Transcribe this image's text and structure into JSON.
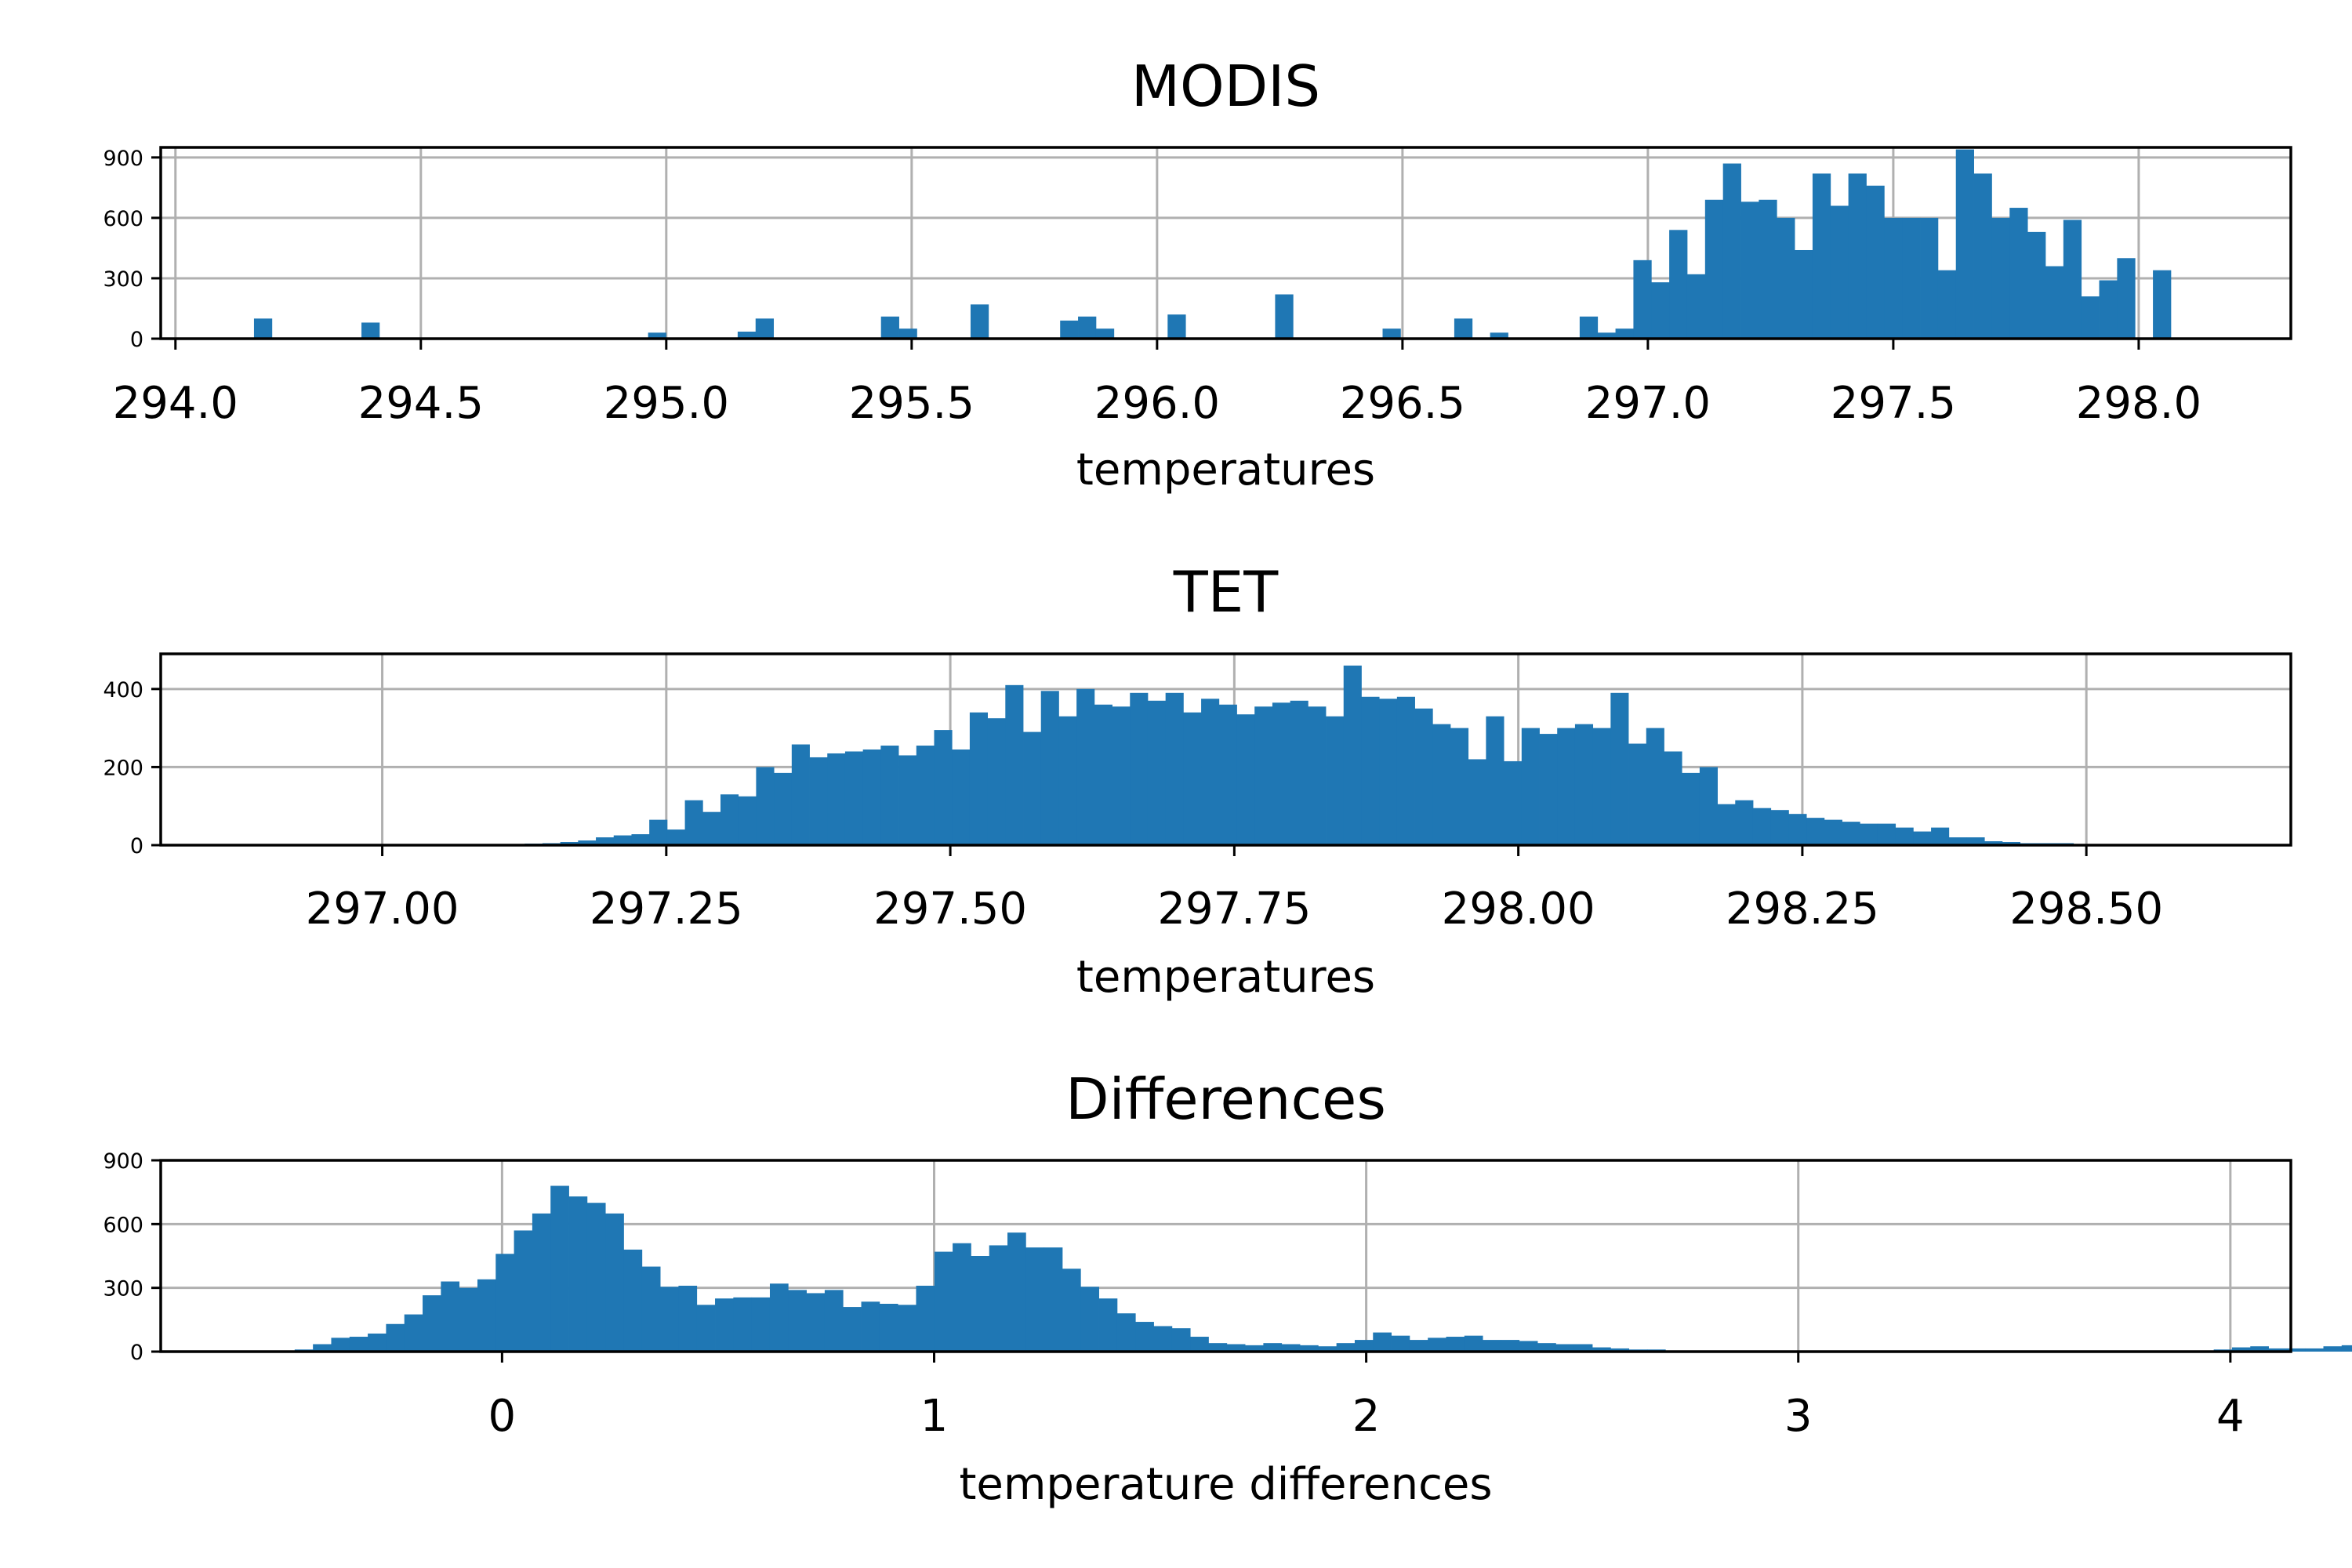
{
  "chart_data": [
    {
      "type": "bar",
      "title": "MODIS",
      "xlabel": "temperatures",
      "ylabel": "",
      "xlim": [
        293.97,
        298.31
      ],
      "ylim": [
        0,
        950
      ],
      "xticks": [
        294.0,
        294.5,
        295.0,
        295.5,
        296.0,
        296.5,
        297.0,
        297.5,
        298.0
      ],
      "xtick_labels": [
        "294.0",
        "294.5",
        "295.0",
        "295.5",
        "296.0",
        "296.5",
        "297.0",
        "297.5",
        "298.0"
      ],
      "yticks": [
        0,
        300,
        600,
        900
      ],
      "ytick_labels": [
        "0",
        "300",
        "600",
        "900"
      ],
      "grid": true,
      "color": "#1f77b4",
      "bins": {
        "start": 294.16,
        "width": 0.0365,
        "counts": [
          100,
          0,
          0,
          0,
          0,
          0,
          80,
          0,
          0,
          0,
          0,
          0,
          0,
          0,
          0,
          0,
          0,
          0,
          0,
          0,
          0,
          0,
          30,
          0,
          0,
          0,
          0,
          35,
          100,
          0,
          0,
          0,
          0,
          0,
          0,
          110,
          50,
          0,
          0,
          0,
          170,
          0,
          0,
          0,
          0,
          90,
          110,
          50,
          0,
          0,
          0,
          120,
          0,
          0,
          0,
          0,
          0,
          220,
          0,
          0,
          0,
          0,
          0,
          50,
          0,
          0,
          0,
          100,
          0,
          30,
          0,
          0,
          0,
          0,
          110,
          30,
          50,
          390,
          280,
          540,
          320,
          690,
          870,
          680,
          690,
          600,
          440,
          820,
          660,
          820,
          760,
          600,
          600,
          600,
          340,
          940,
          820,
          600,
          650,
          530,
          360,
          590,
          210,
          290,
          400,
          0,
          340
        ]
      }
    },
    {
      "type": "bar",
      "title": "TET",
      "xlabel": "temperatures",
      "ylabel": "",
      "xlim": [
        296.805,
        298.68
      ],
      "ylim": [
        0,
        490
      ],
      "xticks": [
        297.0,
        297.25,
        297.5,
        297.75,
        298.0,
        298.25,
        298.5
      ],
      "xtick_labels": [
        "297.00",
        "297.25",
        "297.50",
        "297.75",
        "298.00",
        "298.25",
        "298.50"
      ],
      "yticks": [
        0,
        200,
        400
      ],
      "ytick_labels": [
        "0",
        "200",
        "400"
      ],
      "grid": true,
      "color": "#1f77b4",
      "bins": {
        "start": 297.0,
        "width": 0.01567,
        "counts": [
          2,
          1,
          2,
          1,
          2,
          3,
          3,
          3,
          4,
          5,
          8,
          12,
          20,
          25,
          28,
          65,
          40,
          115,
          85,
          130,
          125,
          200,
          185,
          258,
          225,
          235,
          240,
          245,
          255,
          230,
          255,
          295,
          245,
          340,
          325,
          410,
          290,
          395,
          330,
          400,
          360,
          355,
          390,
          370,
          390,
          340,
          375,
          360,
          335,
          355,
          365,
          370,
          355,
          330,
          460,
          380,
          375,
          380,
          350,
          310,
          300,
          220,
          330,
          215,
          300,
          285,
          300,
          310,
          300,
          390,
          260,
          300,
          240,
          185,
          200,
          105,
          115,
          95,
          90,
          80,
          70,
          65,
          60,
          55,
          55,
          45,
          35,
          45,
          20,
          20,
          10,
          8,
          5,
          5,
          5,
          0
        ]
      }
    },
    {
      "type": "bar",
      "title": "Differences",
      "xlabel": "temperature differences",
      "ylabel": "",
      "xlim": [
        -0.79,
        4.14
      ],
      "ylim": [
        0,
        900
      ],
      "xticks": [
        0,
        1,
        2,
        3,
        4
      ],
      "xtick_labels": [
        "0",
        "1",
        "2",
        "3",
        "4"
      ],
      "yticks": [
        0,
        300,
        600,
        900
      ],
      "ytick_labels": [
        "0",
        "300",
        "600",
        "900"
      ],
      "grid": true,
      "color": "#1f77b4",
      "bins": {
        "start": -0.48,
        "width": 0.0423,
        "counts": [
          10,
          35,
          65,
          70,
          85,
          130,
          175,
          265,
          330,
          300,
          340,
          460,
          570,
          650,
          780,
          730,
          700,
          650,
          480,
          400,
          305,
          310,
          220,
          250,
          255,
          255,
          320,
          290,
          275,
          290,
          210,
          235,
          225,
          220,
          310,
          470,
          510,
          450,
          500,
          560,
          490,
          490,
          390,
          305,
          250,
          180,
          140,
          120,
          110,
          70,
          40,
          35,
          30,
          40,
          35,
          30,
          25,
          40,
          55,
          90,
          75,
          55,
          65,
          70,
          75,
          55,
          55,
          50,
          40,
          35,
          35,
          20,
          15,
          10,
          10,
          5,
          5,
          5,
          5,
          5,
          5,
          5,
          5,
          5,
          5,
          5,
          5,
          5,
          5,
          5,
          5,
          5,
          5,
          5,
          5,
          5,
          5,
          5,
          5,
          5,
          5,
          5,
          5,
          5,
          5,
          10,
          20,
          25,
          15,
          15,
          15,
          25,
          30,
          20,
          15
        ]
      }
    }
  ]
}
